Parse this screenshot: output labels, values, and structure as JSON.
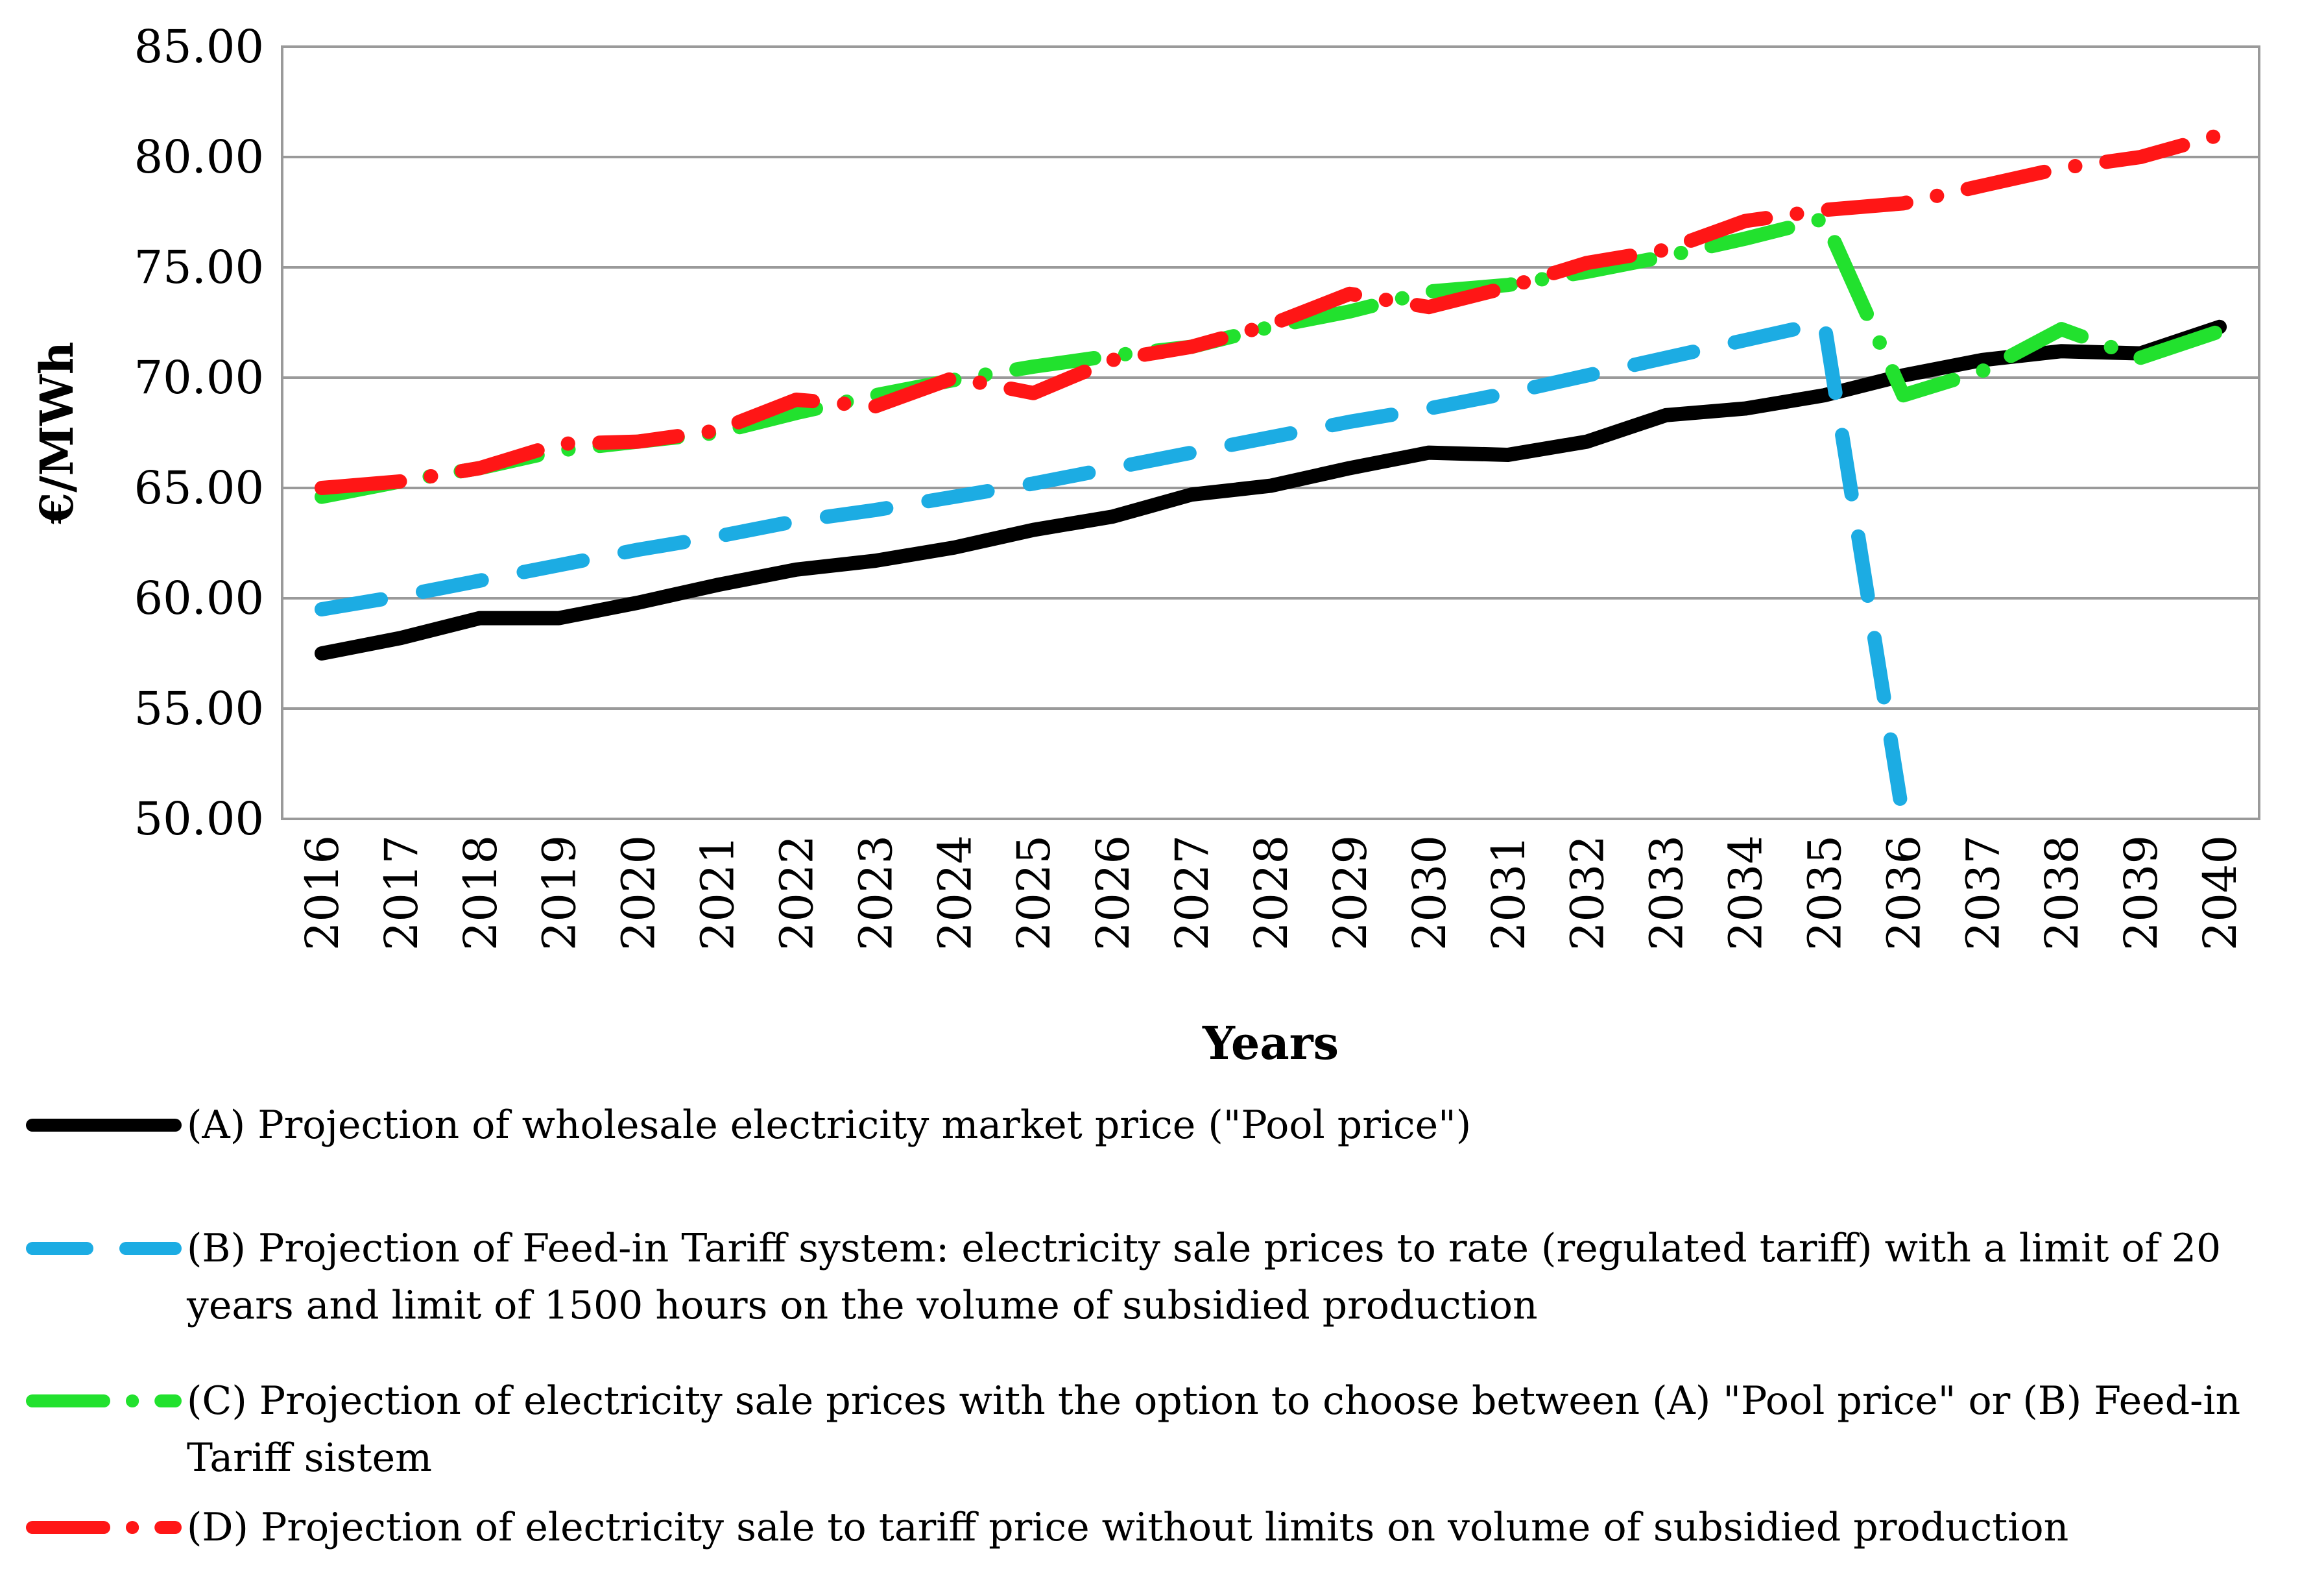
{
  "chart_data": {
    "type": "line",
    "title": "",
    "xlabel": "Years",
    "ylabel": "€/MWh",
    "ylim": [
      50,
      85
    ],
    "ytick_values": [
      50,
      55,
      60,
      65,
      70,
      75,
      80,
      85
    ],
    "ytick_labels": [
      "50.00",
      "55.00",
      "60.00",
      "65.00",
      "70.00",
      "75.00",
      "80.00",
      "85.00"
    ],
    "categories": [
      "2016",
      "2017",
      "2018",
      "2019",
      "2020",
      "2021",
      "2022",
      "2023",
      "2024",
      "2025",
      "2026",
      "2027",
      "2028",
      "2029",
      "2030",
      "2031",
      "2032",
      "2033",
      "2034",
      "2035",
      "2036",
      "2037",
      "2038",
      "2039",
      "2040"
    ],
    "grid": true,
    "legend_position": "bottom",
    "series": [
      {
        "name": "(A) Projection of wholesale electricity market price (\"Pool price\")",
        "color": "#000000",
        "style": "solid",
        "values": [
          57.5,
          58.2,
          59.1,
          59.1,
          59.8,
          60.6,
          61.3,
          61.7,
          62.3,
          63.1,
          63.7,
          64.7,
          65.1,
          65.9,
          66.6,
          66.5,
          67.1,
          68.3,
          68.6,
          69.2,
          70.1,
          70.8,
          71.2,
          71.1,
          72.3
        ]
      },
      {
        "name": "(B) Projection of Feed-in Tariff system: electricity sale prices to rate (regulated tariff) with a limit of 20 years and limit of 1500 hours on the volume of subsidied production",
        "color": "#1cace3",
        "style": "dashed",
        "values": [
          59.5,
          60.1,
          60.8,
          61.5,
          62.2,
          62.8,
          63.5,
          64.0,
          64.6,
          65.2,
          65.9,
          66.6,
          67.3,
          68.0,
          68.6,
          69.3,
          70.1,
          70.9,
          71.7,
          72.5,
          50.0,
          null,
          null,
          null,
          null
        ]
      },
      {
        "name": "(C) Projection of electricity sale prices with the option to choose  between (A) \"Pool price\" or (B) Feed-in Tariff sistem",
        "color": "#22e12e",
        "style": "dash-dot",
        "values": [
          64.6,
          65.3,
          65.9,
          66.7,
          67.1,
          67.5,
          68.4,
          69.2,
          69.9,
          70.5,
          71.0,
          71.4,
          72.3,
          73.0,
          73.9,
          74.2,
          74.8,
          75.5,
          76.3,
          77.2,
          69.2,
          70.3,
          72.2,
          70.9,
          72.1
        ]
      },
      {
        "name": "(D) Projection of electricity sale to tariff price without limits on volume of subsidied production",
        "color": "#ff1616",
        "style": "dash-dot",
        "values": [
          65.0,
          65.3,
          65.9,
          67.0,
          67.1,
          67.6,
          69.0,
          68.7,
          70.0,
          69.3,
          70.8,
          71.4,
          72.4,
          73.8,
          73.2,
          74.1,
          75.2,
          75.8,
          77.1,
          77.6,
          77.9,
          78.7,
          79.5,
          80.0,
          81.0
        ]
      }
    ]
  }
}
